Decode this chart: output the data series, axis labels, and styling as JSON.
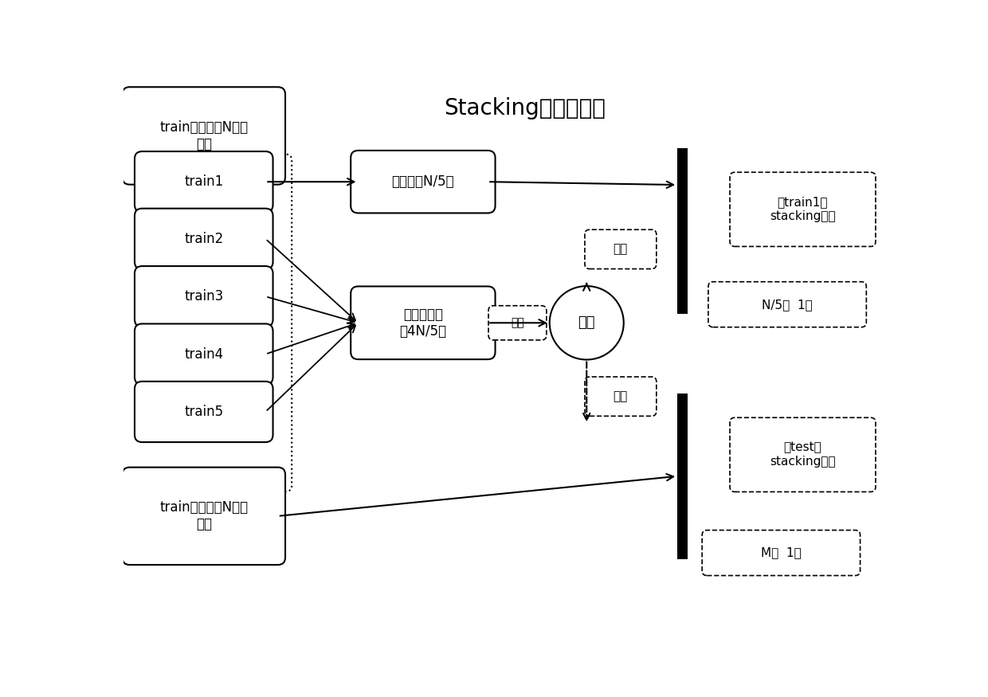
{
  "title": "Stacking的简单介绍",
  "title_fontsize": 20,
  "bg_color": "#ffffff",
  "train_boxes": [
    "train1",
    "train2",
    "train3",
    "train4",
    "train5"
  ],
  "top_outer_box_label": "train训练集（N个样\n本）",
  "bottom_outer_box_label": "train训练集（N个样\n本）",
  "predict_set_box_label": "预测集（N/5）",
  "model_set_box_label": "建模数据集\n（4N/5）",
  "model_circle_label": "模型",
  "jianmo_label": "建模",
  "yuce_label1": "预测",
  "yuce_label2": "预测",
  "right_bar_label1": "对train1的\nstacking转换",
  "right_bar_label2": "对test的\nstacking转换",
  "n5_label": "N/5行  1列",
  "m_label": "M行  1列"
}
